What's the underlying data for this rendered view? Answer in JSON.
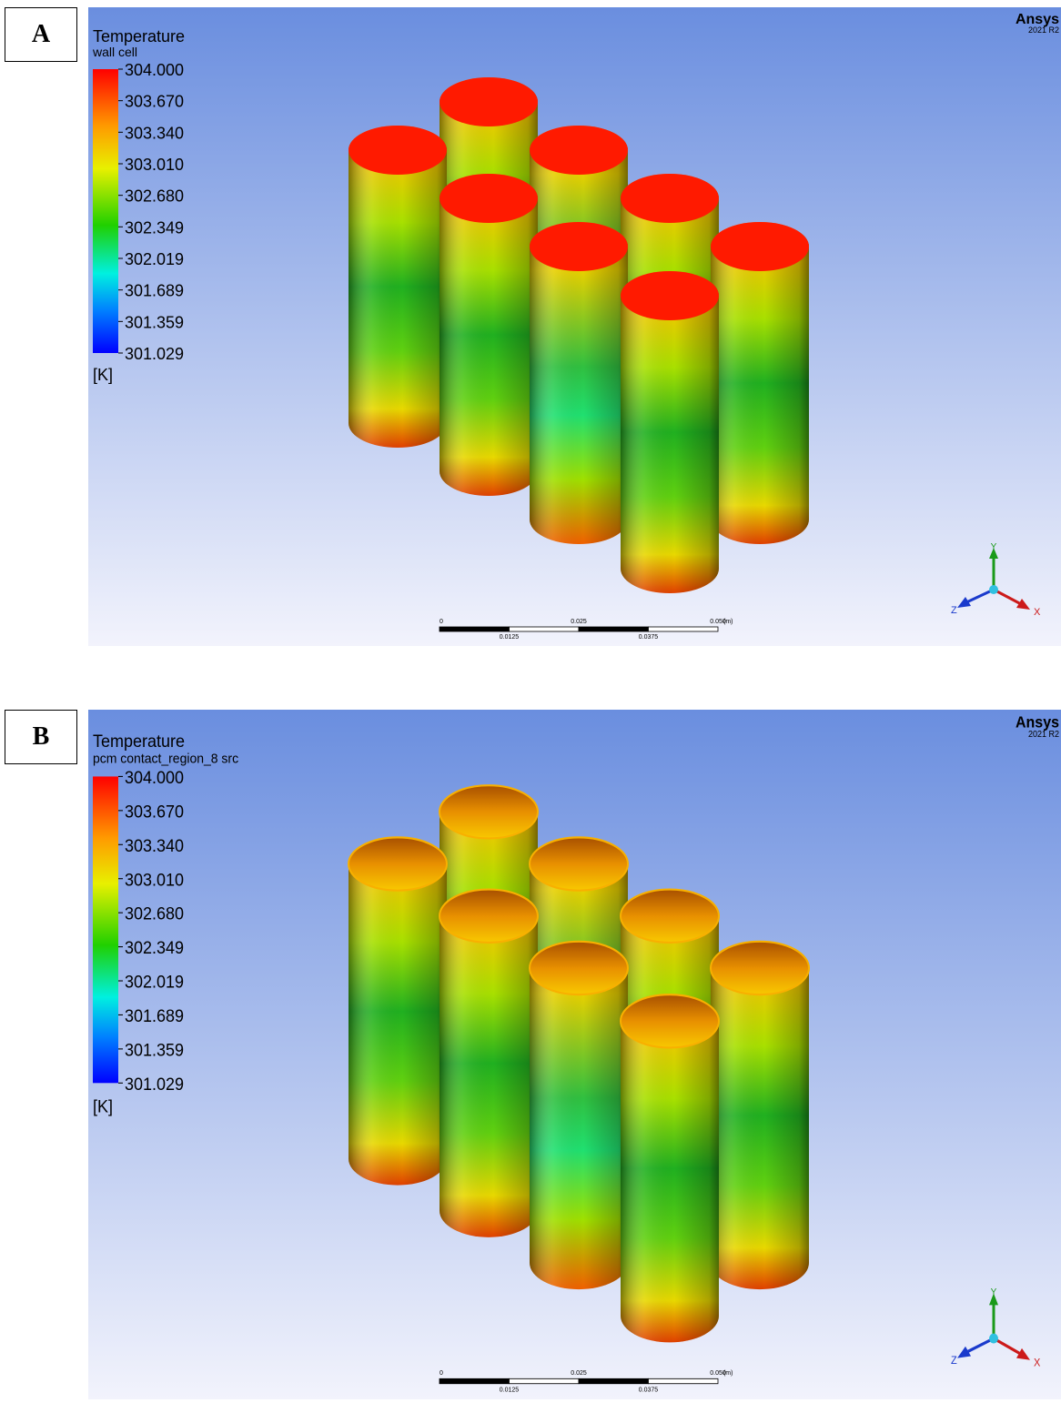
{
  "panels": [
    {
      "label": "A",
      "legend": {
        "title": "Temperature",
        "subtitle": "wall cell",
        "ticks": [
          "304.000",
          "303.670",
          "303.340",
          "303.010",
          "302.680",
          "302.349",
          "302.019",
          "301.689",
          "301.359",
          "301.029"
        ],
        "unit": "[K]"
      },
      "brand": {
        "name": "Ansys",
        "version": "2021 R2"
      },
      "scale_bar": {
        "top_labels": [
          "0",
          "0.025",
          "0.050"
        ],
        "unit": "(m)",
        "bottom_labels": [
          "0.0125",
          "0.0375"
        ]
      },
      "axes": {
        "y": "Y",
        "z": "Z",
        "x": "X"
      }
    },
    {
      "label": "B",
      "legend": {
        "title": "Temperature",
        "subtitle": "pcm contact_region_8 src",
        "ticks": [
          "304.000",
          "303.670",
          "303.340",
          "303.010",
          "302.680",
          "302.349",
          "302.019",
          "301.689",
          "301.359",
          "301.029"
        ],
        "unit": "[K]"
      },
      "brand": {
        "name": "Ansys",
        "version": "2021 R2"
      },
      "scale_bar": {
        "top_labels": [
          "0",
          "0.025",
          "0.050"
        ],
        "unit": "(m)",
        "bottom_labels": [
          "0.0125",
          "0.0375"
        ]
      },
      "axes": {
        "y": "Y",
        "z": "Z",
        "x": "X"
      }
    }
  ]
}
